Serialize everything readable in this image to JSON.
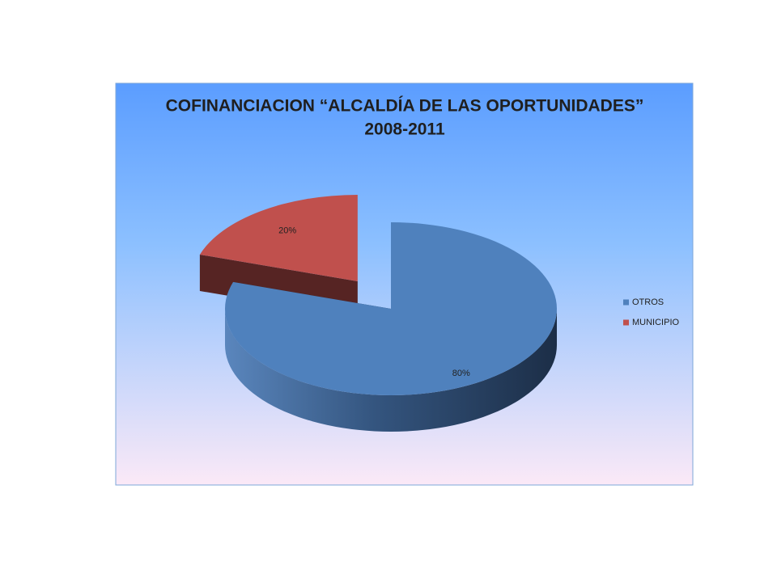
{
  "chart_data": {
    "type": "pie3d",
    "title": "COFINANCIACION “ALCALDÍA DE LAS OPORTUNIDADES”",
    "subtitle": "2008-2011",
    "categories": [
      "OTROS",
      "MUNICIPIO"
    ],
    "values": [
      80,
      20
    ],
    "value_labels": [
      "80%",
      "20%"
    ],
    "colors": [
      "#4f81bd",
      "#c0504d"
    ],
    "legend": "right"
  }
}
